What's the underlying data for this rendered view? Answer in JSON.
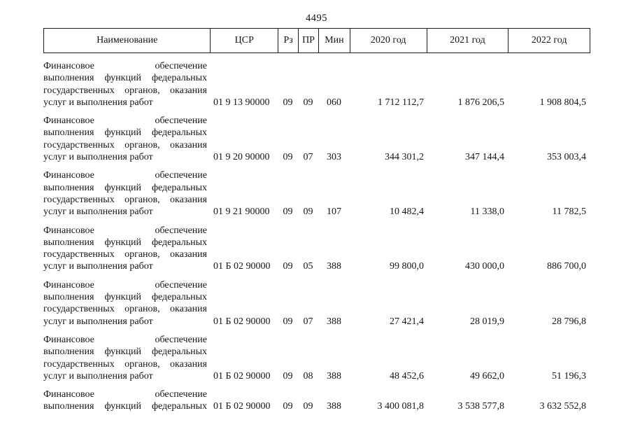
{
  "page": {
    "number": "4495"
  },
  "table": {
    "headers": [
      "Наименование",
      "ЦСР",
      "Рз",
      "ПР",
      "Мин",
      "2020 год",
      "2021 год",
      "2022 год"
    ],
    "rows": [
      {
        "name_lines": [
          "Финансовое обеспечение",
          "выполнения функций федеральных",
          "государственных органов, оказания",
          "услуг и выполнения работ"
        ],
        "truncated": false,
        "csr": "01 9 13 90000",
        "rz": "09",
        "pr": "09",
        "min": "060",
        "y2020": "1 712 112,7",
        "y2021": "1 876 206,5",
        "y2022": "1 908 804,5"
      },
      {
        "name_lines": [
          "Финансовое обеспечение",
          "выполнения функций федеральных",
          "государственных органов, оказания",
          "услуг и выполнения работ"
        ],
        "truncated": false,
        "csr": "01 9 20 90000",
        "rz": "09",
        "pr": "07",
        "min": "303",
        "y2020": "344 301,2",
        "y2021": "347 144,4",
        "y2022": "353 003,4"
      },
      {
        "name_lines": [
          "Финансовое обеспечение",
          "выполнения функций федеральных",
          "государственных органов, оказания",
          "услуг и выполнения работ"
        ],
        "truncated": false,
        "csr": "01 9 21 90000",
        "rz": "09",
        "pr": "09",
        "min": "107",
        "y2020": "10 482,4",
        "y2021": "11 338,0",
        "y2022": "11 782,5"
      },
      {
        "name_lines": [
          "Финансовое обеспечение",
          "выполнения функций федеральных",
          "государственных органов, оказания",
          "услуг и выполнения работ"
        ],
        "truncated": false,
        "csr": "01 Б 02 90000",
        "rz": "09",
        "pr": "05",
        "min": "388",
        "y2020": "99 800,0",
        "y2021": "430 000,0",
        "y2022": "886 700,0"
      },
      {
        "name_lines": [
          "Финансовое обеспечение",
          "выполнения функций федеральных",
          "государственных органов, оказания",
          "услуг и выполнения работ"
        ],
        "truncated": false,
        "csr": "01 Б 02 90000",
        "rz": "09",
        "pr": "07",
        "min": "388",
        "y2020": "27 421,4",
        "y2021": "28 019,9",
        "y2022": "28 796,8"
      },
      {
        "name_lines": [
          "Финансовое обеспечение",
          "выполнения функций федеральных",
          "государственных органов, оказания",
          "услуг и выполнения работ"
        ],
        "truncated": false,
        "csr": "01 Б 02 90000",
        "rz": "09",
        "pr": "08",
        "min": "388",
        "y2020": "48 452,6",
        "y2021": "49 662,0",
        "y2022": "51 196,3"
      },
      {
        "name_lines": [
          "Финансовое обеспечение",
          "выполнения функций федеральных"
        ],
        "truncated": true,
        "csr": "01 Б 02 90000",
        "rz": "09",
        "pr": "09",
        "min": "388",
        "y2020": "3 400 081,8",
        "y2021": "3 538 577,8",
        "y2022": "3 632 552,8"
      }
    ]
  }
}
